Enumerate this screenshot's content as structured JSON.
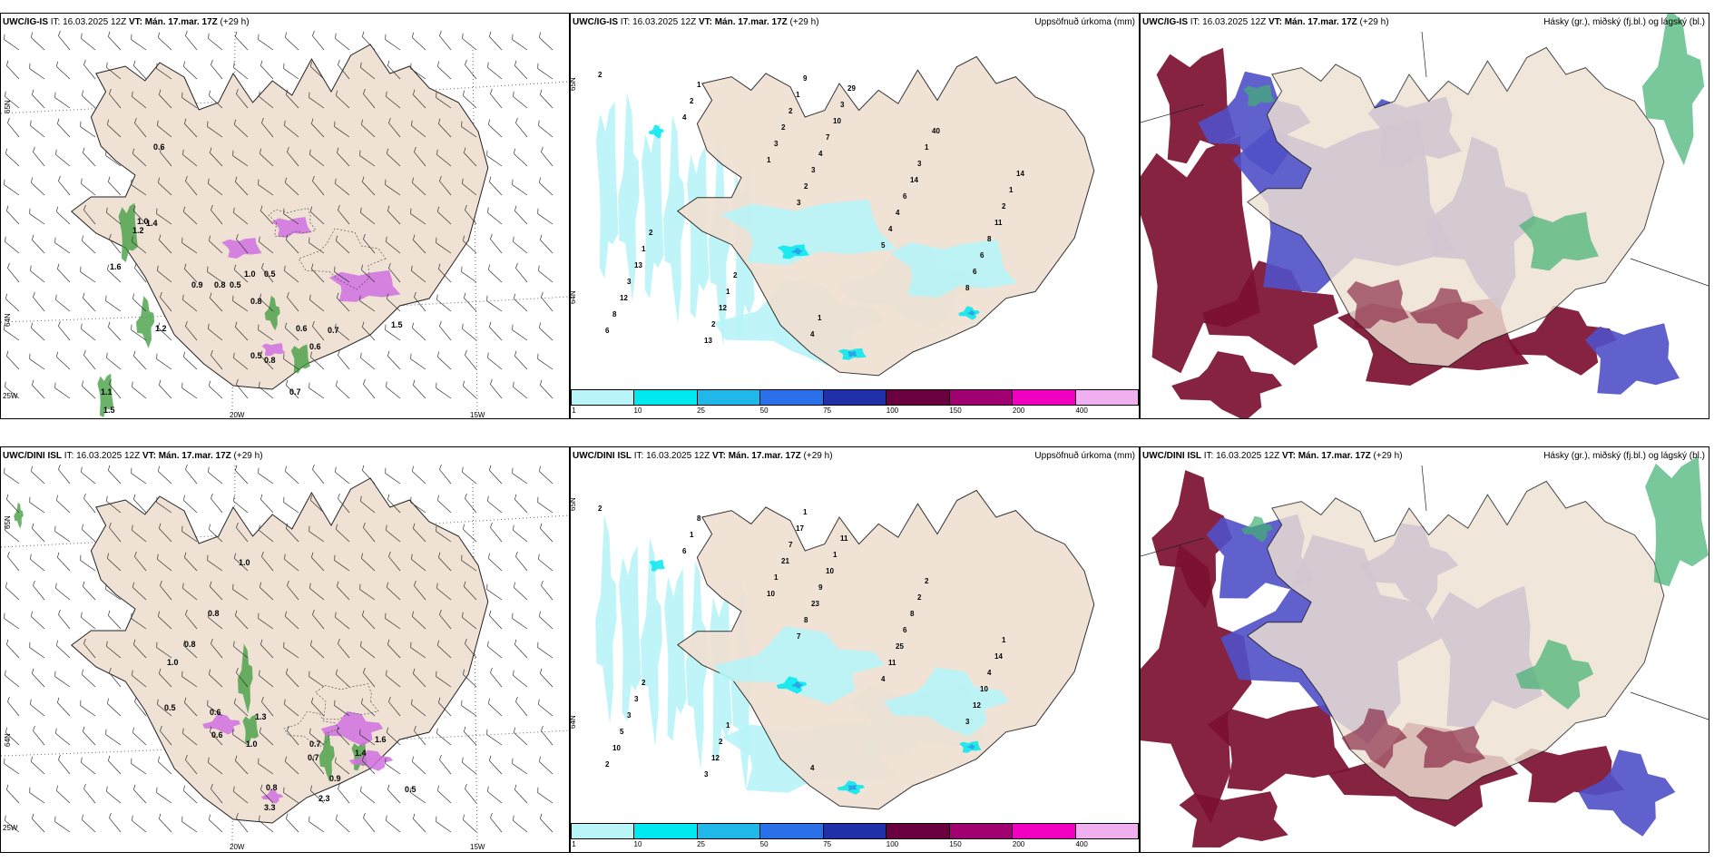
{
  "row_top": {
    "wind_panel": {
      "title_model": "UWC/IG-IS",
      "title_it": " IT: 16.03.2025 12Z ",
      "title_vt_label": "VT: Mán. 17.mar. 17Z",
      "title_lead": " (+29 h)",
      "lat_labels": [
        "65N",
        "64N"
      ],
      "lon_labels": [
        "25W",
        "20W",
        "15W"
      ],
      "value_labels": [
        "0.6",
        "1.2",
        "1.4",
        "1.6",
        "1.0",
        "0.9",
        "0.8",
        "0.5",
        "1.0",
        "0.8",
        "0.5",
        "1.2",
        "0.6",
        "0.7",
        "0.6",
        "0.7",
        "0.8",
        "0.5",
        "1.5",
        "1.1",
        "1.5"
      ]
    },
    "precip_panel": {
      "title_model": "UWC/IG-IS",
      "title_it": " IT: 16.03.2025 12Z ",
      "title_vt_label": "VT: Mán. 17.mar. 17Z",
      "title_lead": " (+29 h)",
      "right_title": "Uppsöfnuð úrkoma (mm)",
      "lat_labels": [
        "65N",
        "64N"
      ],
      "value_labels": [
        "2",
        "4",
        "1",
        "3",
        "5",
        "8",
        "6",
        "2",
        "3",
        "2",
        "4",
        "6",
        "8",
        "1",
        "2",
        "3",
        "4",
        "6",
        "12",
        "13",
        "2",
        "4",
        "6",
        "8",
        "3",
        "2",
        "1",
        "7",
        "14",
        "11",
        "13",
        "12",
        "9",
        "10",
        "3",
        "2",
        "1",
        "1",
        "4",
        "3",
        "1",
        "1",
        "2",
        "2",
        "1",
        "29",
        "40",
        "14"
      ],
      "legend": [
        "1",
        "10",
        "25",
        "50",
        "75",
        "100",
        "150",
        "200",
        "400"
      ]
    },
    "cloud_panel": {
      "title_model": "UWC/IG-IS",
      "title_it": " IT: 16.03.2025 12Z ",
      "title_vt_label": "VT: Mán. 17.mar. 17Z",
      "title_lead": " (+29 h)",
      "right_title": "Hásky (gr.), miðský (fj.bl.) og lágský (bl.)"
    }
  },
  "row_bottom": {
    "wind_panel": {
      "title_model": "UWC/DINI ISL",
      "title_it": " IT: 16.03.2025 12Z ",
      "title_vt_label": "VT: Mán. 17.mar. 17Z",
      "title_lead": " (+29 h)",
      "lat_labels": [
        "65N",
        "64N"
      ],
      "lon_labels": [
        "25W",
        "20W",
        "15W"
      ],
      "value_labels": [
        "1.0",
        "0.8",
        "0.8",
        "1.0",
        "0.5",
        "0.6",
        "0.6",
        "1.0",
        "1.3",
        "0.7",
        "1.4",
        "1.6",
        "0.9",
        "2.3",
        "0.8",
        "3.3",
        "0.5",
        "0.7"
      ]
    },
    "precip_panel": {
      "title_model": "UWC/DINI ISL",
      "title_it": " IT: 16.03.2025 12Z ",
      "title_vt_label": "VT: Mán. 17.mar. 17Z",
      "title_lead": " (+29 h)",
      "right_title": "Uppsöfnuð úrkoma (mm)",
      "lat_labels": [
        "65N",
        "64N"
      ],
      "value_labels": [
        "2",
        "6",
        "10",
        "7",
        "4",
        "3",
        "2",
        "1",
        "1",
        "8",
        "11",
        "12",
        "10",
        "8",
        "21",
        "23",
        "25",
        "10",
        "5",
        "3",
        "7",
        "9",
        "6",
        "4",
        "3",
        "12",
        "17",
        "10",
        "8",
        "14",
        "3",
        "2",
        "1",
        "1",
        "2",
        "1",
        "2",
        "1",
        "4",
        "11",
        "2"
      ],
      "legend": [
        "1",
        "10",
        "25",
        "50",
        "75",
        "100",
        "150",
        "200",
        "400"
      ]
    },
    "cloud_panel": {
      "title_model": "UWC/DINI ISL",
      "title_it": " IT: 16.03.2025 12Z ",
      "title_vt_label": "VT: Mán. 17.mar. 17Z",
      "title_lead": " (+29 h)",
      "right_title": "Hásky (gr.), miðský (fj.bl.) og lágský (bl.)"
    }
  },
  "colors": {
    "land": "#efe1d3",
    "coast": "#222222",
    "precip_light": "#b8f4f8",
    "precip_mid": "#00e8f0",
    "precip_blue": "#2aa6e8",
    "wind_green": "#3a9a3a",
    "magenta": "#d070e0",
    "low_cloud": "#7c1030",
    "mid_cloud": "#5050c8",
    "high_cloud": "#40b070",
    "legend": [
      "#b8f4f8",
      "#00e8f0",
      "#20b8e8",
      "#2a70e8",
      "#2030a8",
      "#6a0040",
      "#a00070",
      "#f000c0",
      "#f0b0f0"
    ]
  }
}
